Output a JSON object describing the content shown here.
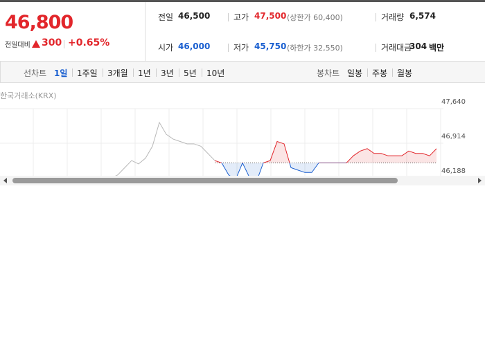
{
  "quote": {
    "price": "46,800",
    "change_label": "전일대비",
    "change": "300",
    "change_rate": "+0.65%"
  },
  "stats": [
    {
      "label": "전일",
      "value": "46,500"
    },
    {
      "label": "고가",
      "value": "47,500",
      "note": "(상한가 60,400)"
    },
    {
      "label": "거래량",
      "value": "6,574"
    },
    {
      "label": "시가",
      "value": "46,000"
    },
    {
      "label": "저가",
      "value": "45,750",
      "note": "(하한가 32,550)"
    },
    {
      "label": "거래대금",
      "value": "304",
      "unit": "백만"
    }
  ],
  "line_tabs": {
    "label": "선차트",
    "items": [
      "1일",
      "1주일",
      "3개월",
      "1년",
      "3년",
      "5년",
      "10년"
    ]
  },
  "candle_tabs": {
    "label": "봉차트",
    "items": [
      "일봉",
      "주봉",
      "월봉"
    ]
  },
  "chart_data": {
    "type": "line",
    "source": "한국거래소(KRX)",
    "ylim": [
      46188,
      47640
    ],
    "yticks": [
      {
        "value": 46188,
        "label": "46,188"
      },
      {
        "value": 46914,
        "label": "46,914"
      },
      {
        "value": 47640,
        "label": "47,640"
      }
    ],
    "baseline": 46500,
    "series": [
      {
        "color": "#b8b8b8",
        "values": [
          null,
          null,
          null,
          null,
          null,
          null,
          null,
          null,
          null,
          null,
          null,
          null,
          null,
          null,
          46150,
          46200,
          46180,
          46250,
          46400,
          46550,
          46480,
          46600,
          46850,
          47350,
          47100,
          47000,
          46950,
          46900,
          46900,
          46850,
          46700,
          46550,
          null,
          null,
          null,
          null,
          null,
          null,
          null,
          null,
          null,
          null,
          null,
          null,
          null,
          null,
          null,
          null,
          null,
          null,
          null,
          null,
          null,
          null,
          null,
          null,
          null,
          null,
          null,
          null,
          null,
          null,
          null,
          null
        ]
      },
      {
        "color": "#e2262b",
        "color_down": "#1a5fd0",
        "values": [
          null,
          null,
          null,
          null,
          null,
          null,
          null,
          null,
          null,
          null,
          null,
          null,
          null,
          null,
          null,
          null,
          null,
          null,
          null,
          null,
          null,
          null,
          null,
          null,
          null,
          null,
          null,
          null,
          null,
          null,
          null,
          46550,
          46500,
          46250,
          46150,
          46500,
          46200,
          46100,
          46500,
          46550,
          46950,
          46900,
          46400,
          46350,
          46300,
          46300,
          46500,
          46500,
          46500,
          46500,
          46500,
          46650,
          46750,
          46800,
          46700,
          46700,
          46650,
          46650,
          46650,
          46750,
          46700,
          46700,
          46650,
          46800
        ]
      }
    ]
  }
}
